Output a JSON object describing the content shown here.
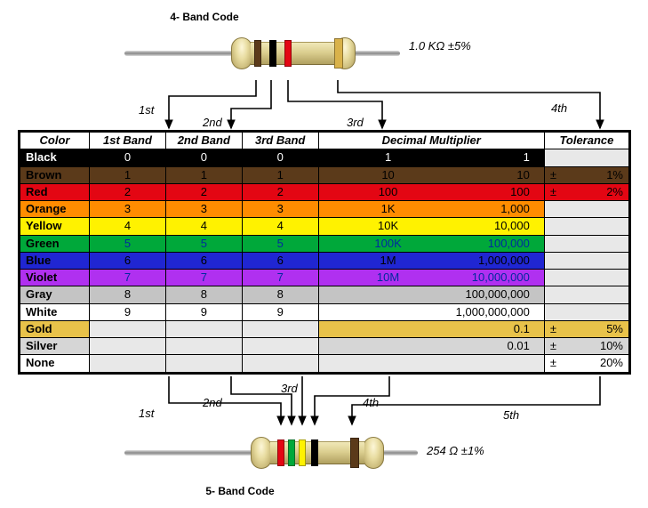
{
  "diagram": {
    "title_4band": "4- Band Code",
    "title_5band": "5- Band Code",
    "fourband": {
      "value_label": "1.0 KΩ  ±5%",
      "bands": [
        {
          "name": "1st",
          "color": "#5b3a1a"
        },
        {
          "name": "2nd",
          "color": "#000000"
        },
        {
          "name": "3rd",
          "color": "#e30613"
        },
        {
          "name": "4th",
          "color": "#d9b24a"
        }
      ]
    },
    "fiveband": {
      "value_label": "254 Ω  ±1%",
      "bands": [
        {
          "name": "1st",
          "color": "#e30613"
        },
        {
          "name": "2nd",
          "color": "#00a83a"
        },
        {
          "name": "3rd",
          "color": "#fff200"
        },
        {
          "name": "4th",
          "color": "#000000"
        },
        {
          "name": "5th",
          "color": "#5b3a1a"
        }
      ]
    }
  },
  "table": {
    "headers": {
      "color": "Color",
      "b1": "1st Band",
      "b2": "2nd Band",
      "b3": "3rd Band",
      "mult": "Decimal Multiplier",
      "tol": "Tolerance"
    },
    "rows": [
      {
        "name": "Black",
        "bg": "#000000",
        "fg": "light",
        "d": "0",
        "mult_l": "1",
        "mult_r": "1",
        "tol": ""
      },
      {
        "name": "Brown",
        "bg": "#5b3a1a",
        "fg": "dark",
        "d": "1",
        "mult_l": "10",
        "mult_r": "10",
        "tol": "±   1%"
      },
      {
        "name": "Red",
        "bg": "#e30613",
        "fg": "dark",
        "d": "2",
        "mult_l": "100",
        "mult_r": "100",
        "tol": "±   2%"
      },
      {
        "name": "Orange",
        "bg": "#ff8c00",
        "fg": "dark",
        "d": "3",
        "mult_l": "1K",
        "mult_r": "1,000",
        "tol": ""
      },
      {
        "name": "Yellow",
        "bg": "#fff200",
        "fg": "dark",
        "d": "4",
        "mult_l": "10K",
        "mult_r": "10,000",
        "tol": ""
      },
      {
        "name": "Green",
        "bg": "#00a83a",
        "fg": "blue",
        "d": "5",
        "mult_l": "100K",
        "mult_r": "100,000",
        "tol": ""
      },
      {
        "name": "Blue",
        "bg": "#2026d2",
        "fg": "dark",
        "d": "6",
        "mult_l": "1M",
        "mult_r": "1,000,000",
        "tol": ""
      },
      {
        "name": "Violet",
        "bg": "#b030f0",
        "fg": "blue",
        "d": "7",
        "mult_l": "10M",
        "mult_r": "10,000,000",
        "tol": ""
      },
      {
        "name": "Gray",
        "bg": "#c4c4c4",
        "fg": "dark",
        "d": "8",
        "mult_l": "",
        "mult_r": "100,000,000",
        "tol": ""
      },
      {
        "name": "White",
        "bg": "#ffffff",
        "fg": "dark",
        "d": "9",
        "mult_l": "",
        "mult_r": "1,000,000,000",
        "tol": ""
      },
      {
        "name": "Gold",
        "bg": "#e8c24a",
        "fg": "dark",
        "d": "",
        "mult_l": "",
        "mult_r": "0.1",
        "tol": "±   5%"
      },
      {
        "name": "Silver",
        "bg": "#d6d6d6",
        "fg": "dark",
        "d": "",
        "mult_l": "",
        "mult_r": "0.01",
        "tol": "±  10%"
      },
      {
        "name": "None",
        "bg": "#ffffff",
        "fg": "dark",
        "d": "",
        "mult_l": "",
        "mult_r": "",
        "tol": "±  20%"
      }
    ],
    "blank_bg": "#e8e8e8",
    "col_widths_pct": [
      11.5,
      12.5,
      12.5,
      12.5,
      37,
      14
    ]
  }
}
